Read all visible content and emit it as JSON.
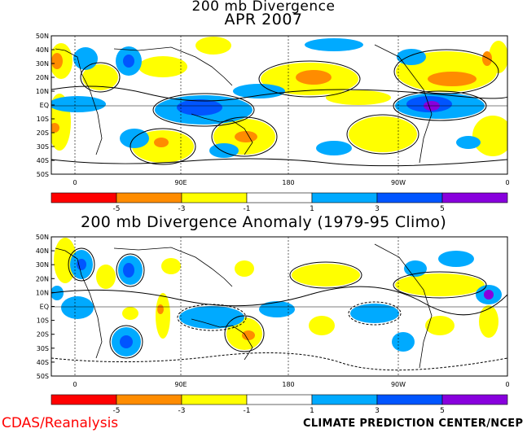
{
  "header": {
    "title_line1": "200 mb Divergence",
    "title_line2": "APR 2007"
  },
  "lower_panel": {
    "title": "200 mb Divergence Anomaly (1979-95 Climo)"
  },
  "axes": {
    "lat_labels": [
      "50N",
      "40N",
      "30N",
      "20N",
      "10N",
      "EQ",
      "10S",
      "20S",
      "30S",
      "40S",
      "50S"
    ],
    "lon_labels": [
      "0",
      "90E",
      "180",
      "90W",
      "0"
    ]
  },
  "colorbar": {
    "labels": [
      "-5",
      "-3",
      "-1",
      "1",
      "3",
      "5"
    ],
    "colors": [
      "#ff0000",
      "#ff8c00",
      "#ffff00",
      "#ffffff",
      "#00aaff",
      "#0055ff",
      "#8800dd"
    ]
  },
  "footer": {
    "left": "CDAS/Reanalysis",
    "right": "CLIMATE PREDICTION CENTER/NCEP"
  },
  "fill_colors": {
    "orange": "#ff8c00",
    "yellow": "#ffff00",
    "light_blue": "#00aaff",
    "blue": "#0055ff",
    "purple": "#8800dd"
  }
}
